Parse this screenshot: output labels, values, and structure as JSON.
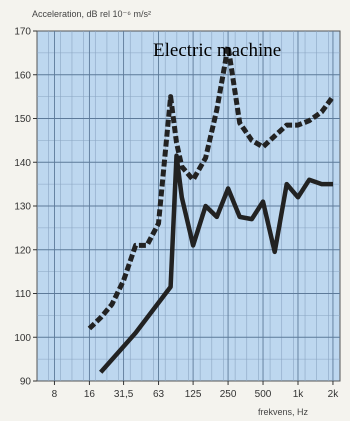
{
  "chart_data": {
    "type": "line",
    "title": "",
    "ylabel": "Acceleration, dB rel 10⁻⁶ m/s²",
    "xlabel": "frekvens, Hz",
    "annotation": "Electric machine",
    "ylim": [
      90,
      170
    ],
    "y_ticks": [
      90,
      100,
      110,
      120,
      130,
      140,
      150,
      160,
      170
    ],
    "x_tick_labels": [
      "8",
      "16",
      "31,5",
      "63",
      "125",
      "250",
      "500",
      "1k",
      "2k"
    ],
    "x_ticks": [
      8,
      16,
      31.5,
      63,
      125,
      250,
      500,
      1000,
      2000
    ],
    "xlim": [
      5.66,
      2300
    ],
    "x_scale": "log",
    "grid": true,
    "series": [
      {
        "style": "dashed",
        "color": "#222222",
        "x": [
          16,
          20,
          25,
          31.5,
          40,
          50,
          63,
          80,
          90,
          100,
          125,
          160,
          200,
          250,
          315,
          400,
          500,
          630,
          800,
          1000,
          1250,
          1600,
          2000
        ],
        "y": [
          102,
          104.5,
          107.5,
          113,
          121,
          121,
          126,
          155,
          144.5,
          139,
          136,
          141,
          152,
          166.5,
          149,
          145,
          143.5,
          146,
          148.5,
          148.5,
          149.5,
          151.5,
          155
        ]
      },
      {
        "style": "solid",
        "color": "#222222",
        "x": [
          20,
          40,
          80,
          90,
          100,
          125,
          160,
          200,
          250,
          315,
          400,
          500,
          630,
          800,
          1000,
          1250,
          1600,
          2000
        ],
        "y": [
          92,
          101,
          111.5,
          141.5,
          132,
          121,
          130,
          127.5,
          134,
          127.5,
          127,
          131,
          119.5,
          135,
          132,
          136,
          135,
          135
        ]
      }
    ]
  }
}
